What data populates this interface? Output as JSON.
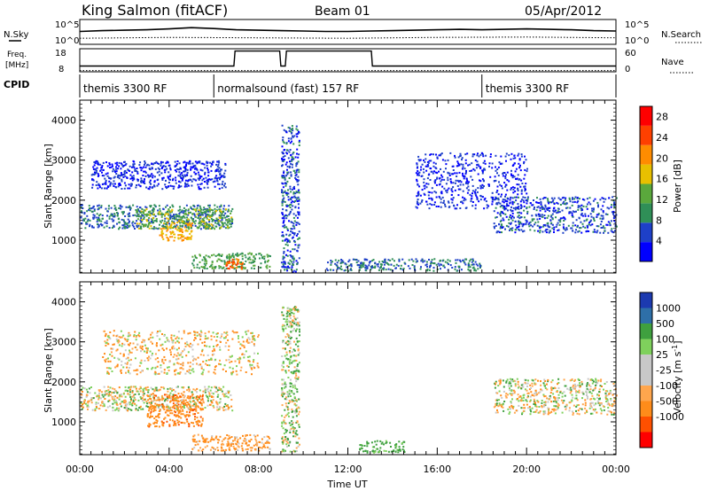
{
  "header": {
    "station": "King Salmon (fitACF)",
    "beam": "Beam 01",
    "date": "05/Apr/2012"
  },
  "colors": {
    "power_scale": [
      "#0000ff",
      "#1e40c8",
      "#2f8f57",
      "#5aa83c",
      "#e8c000",
      "#ff8c00",
      "#ff4000",
      "#ff0000"
    ],
    "velocity_scale": [
      "#ff0000",
      "#ff5000",
      "#ff8c1a",
      "#ffa64d",
      "#c8c8c8",
      "#c8c8c8",
      "#7fd15c",
      "#3fa03f",
      "#2e6fa8",
      "#1c3ab0"
    ],
    "ground_scatter": "#c8c8c8"
  },
  "chart_data": [
    {
      "type": "line",
      "name": "noise-panel",
      "left_labels": [
        "N.Sky"
      ],
      "right_labels": [
        "N.Search"
      ],
      "y_ticks_left": [
        "10^5",
        "10^0"
      ],
      "y_ticks_right": [
        "10^5",
        "10^0"
      ],
      "series": [
        {
          "name": "N.Sky",
          "style": "solid",
          "x_hours": [
            0,
            1,
            2,
            3,
            4,
            5,
            6,
            7,
            8,
            9,
            10,
            11,
            12,
            13,
            14,
            15,
            16,
            17,
            18,
            19,
            20,
            21,
            22,
            23,
            24
          ],
          "log10_values": [
            2.6,
            2.8,
            2.9,
            3.0,
            3.2,
            3.5,
            3.3,
            3.0,
            2.9,
            2.8,
            2.7,
            2.6,
            2.6,
            2.7,
            2.8,
            2.9,
            3.0,
            3.1,
            3.0,
            3.1,
            3.2,
            3.1,
            3.0,
            2.8,
            2.7
          ]
        },
        {
          "name": "N.Search",
          "style": "dotted",
          "x_hours": [
            0,
            4,
            8,
            12,
            16,
            20,
            24
          ],
          "log10_values": [
            1.0,
            1.2,
            1.1,
            1.0,
            1.2,
            1.3,
            1.1
          ]
        }
      ]
    },
    {
      "type": "line",
      "name": "frequency-panel",
      "left_labels": [
        "Freq.",
        "[MHz]"
      ],
      "right_labels": [
        "Nave"
      ],
      "y_ticks_left": [
        "18",
        "8"
      ],
      "y_ticks_right": [
        "60",
        "0"
      ],
      "series": [
        {
          "name": "Freq.",
          "style": "solid",
          "x_hours": [
            0,
            0.1,
            6.9,
            6.95,
            8.95,
            9.0,
            9.2,
            9.25,
            13.05,
            13.1,
            24
          ],
          "values": [
            10.5,
            10.5,
            10.5,
            17.0,
            17.0,
            10.5,
            10.5,
            17.0,
            17.0,
            10.5,
            10.5
          ]
        },
        {
          "name": "Nave",
          "style": "dotted",
          "x_hours": [
            0,
            24
          ],
          "values": [
            1,
            1
          ]
        }
      ]
    },
    {
      "type": "table",
      "name": "cpid-strip",
      "label": "CPID",
      "segments": [
        {
          "start_hour": 0,
          "end_hour": 6,
          "label": "themis 3300 RF"
        },
        {
          "start_hour": 6,
          "end_hour": 18,
          "label": "normalsound (fast) 157 RF"
        },
        {
          "start_hour": 18,
          "end_hour": 24,
          "label": "themis 3300 RF"
        }
      ]
    },
    {
      "type": "heatmap",
      "name": "power-panel",
      "ylabel": "Slant Range [km]",
      "y_ticks": [
        1000,
        2000,
        3000,
        4000
      ],
      "ylim": [
        180,
        4500
      ],
      "xlim_hours": [
        0,
        24
      ],
      "colorbar_label": "Power [dB]",
      "colorbar_ticks": [
        4,
        8,
        12,
        16,
        20,
        24,
        28
      ],
      "colorbar_range": [
        0,
        30
      ],
      "regions": [
        {
          "t0": 0.0,
          "t1": 6.8,
          "r0": 1300,
          "r1": 1900,
          "value": 8
        },
        {
          "t0": 2.5,
          "t1": 6.8,
          "r0": 1300,
          "r1": 1800,
          "value": 14
        },
        {
          "t0": 3.5,
          "t1": 5.0,
          "r0": 1000,
          "r1": 1500,
          "value": 20
        },
        {
          "t0": 5.0,
          "t1": 8.5,
          "r0": 300,
          "r1": 700,
          "value": 12
        },
        {
          "t0": 6.5,
          "t1": 7.3,
          "r0": 300,
          "r1": 550,
          "value": 24
        },
        {
          "t0": 0.5,
          "t1": 6.5,
          "r0": 2300,
          "r1": 3000,
          "value": 4
        },
        {
          "t0": 9.0,
          "t1": 9.8,
          "r0": 200,
          "r1": 3900,
          "value": 6
        },
        {
          "t0": 11.0,
          "t1": 18.0,
          "r0": 250,
          "r1": 550,
          "value": 8
        },
        {
          "t0": 18.5,
          "t1": 24.0,
          "r0": 1200,
          "r1": 2100,
          "value": 6
        },
        {
          "t0": 15.0,
          "t1": 20.0,
          "r0": 1800,
          "r1": 3200,
          "value": 4
        }
      ]
    },
    {
      "type": "heatmap",
      "name": "velocity-panel",
      "xlabel": "Time UT",
      "ylabel": "Slant Range [km]",
      "x_ticks": [
        "00:00",
        "04:00",
        "08:00",
        "12:00",
        "16:00",
        "20:00",
        "00:00"
      ],
      "y_ticks": [
        1000,
        2000,
        3000,
        4000
      ],
      "ylim": [
        180,
        4500
      ],
      "xlim_hours": [
        0,
        24
      ],
      "colorbar_label": "Velocity [m s^-1]",
      "colorbar_ticks": [
        1000,
        500,
        100,
        25,
        -25,
        -100,
        -500,
        -1000
      ],
      "regions": [
        {
          "t0": 0.0,
          "t1": 6.8,
          "r0": 1300,
          "r1": 1900,
          "value": 0
        },
        {
          "t0": 3.0,
          "t1": 5.5,
          "r0": 900,
          "r1": 1700,
          "value": -400
        },
        {
          "t0": 5.0,
          "t1": 8.5,
          "r0": 300,
          "r1": 700,
          "value": -150
        },
        {
          "t0": 9.0,
          "t1": 9.8,
          "r0": 250,
          "r1": 3900,
          "value": 50
        },
        {
          "t0": 12.5,
          "t1": 14.5,
          "r0": 250,
          "r1": 550,
          "value": 200
        },
        {
          "t0": 18.5,
          "t1": 24.0,
          "r0": 1200,
          "r1": 2100,
          "value": 0
        },
        {
          "t0": 1.0,
          "t1": 8.0,
          "r0": 2200,
          "r1": 3300,
          "value": -50
        }
      ]
    }
  ]
}
